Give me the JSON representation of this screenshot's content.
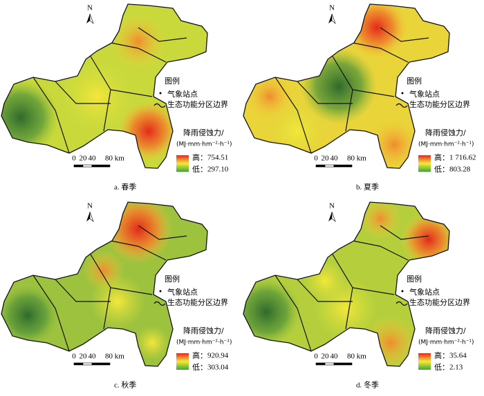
{
  "panels": [
    {
      "caption": "a.  春季",
      "north": "N",
      "legend_title": "图例",
      "station_label": "气象站点",
      "boundary_label": "生态功能分区边界",
      "erosion_title": "降雨侵蚀力/",
      "erosion_unit": "(MJ·mm·hm⁻²·h⁻¹)",
      "high_label": "高：",
      "high_value": "754.51",
      "low_label": "低：",
      "low_value": "297.10",
      "scale": [
        "0",
        "20",
        "40",
        "80 km"
      ]
    },
    {
      "caption": "b.  夏季",
      "north": "N",
      "legend_title": "图例",
      "station_label": "气象站点",
      "boundary_label": "生态功能分区边界",
      "erosion_title": "降雨侵蚀力/",
      "erosion_unit": "(MJ·mm·hm⁻²·h⁻¹)",
      "high_label": "高：",
      "high_value": "1 716.62",
      "low_label": "低：",
      "low_value": "803.28",
      "scale": [
        "0",
        "20",
        "40",
        "80 km"
      ]
    },
    {
      "caption": "c.  秋季",
      "north": "N",
      "legend_title": "图例",
      "station_label": "气象站点",
      "boundary_label": "生态功能分区边界",
      "erosion_title": "降雨侵蚀力/",
      "erosion_unit": "(MJ·mm·hm⁻²·h⁻¹)",
      "high_label": "高：",
      "high_value": "920.94",
      "low_label": "低：",
      "low_value": "303.04",
      "scale": [
        "0",
        "20",
        "40",
        "80 km"
      ]
    },
    {
      "caption": "d.  冬季",
      "north": "N",
      "legend_title": "图例",
      "station_label": "气象站点",
      "boundary_label": "生态功能分区边界",
      "erosion_title": "降雨侵蚀力/",
      "erosion_unit": "(MJ·mm·hm⁻²·h⁻¹)",
      "high_label": "高：",
      "high_value": "35.64",
      "low_label": "低：",
      "low_value": "2.13",
      "scale": [
        "0",
        "20",
        "40",
        "80 km"
      ]
    }
  ]
}
